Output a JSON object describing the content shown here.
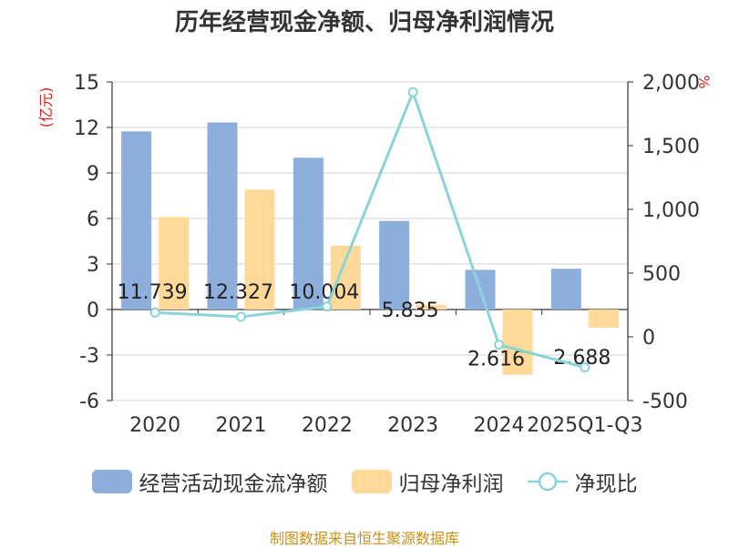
{
  "chart_data": {
    "type": "bar+line",
    "title": "历年经营现金净额、归母净利润情况",
    "categories": [
      "2020",
      "2021",
      "2022",
      "2023",
      "2024",
      "2025Q1-Q3"
    ],
    "series": [
      {
        "name": "经营活动现金流净额",
        "type": "bar",
        "axis": "left",
        "color": "#8eaedb",
        "values": [
          11.739,
          12.327,
          10.004,
          5.835,
          2.616,
          2.688
        ],
        "labels": [
          "11.739",
          "12.327",
          "10.004",
          "5.835",
          "2.616",
          "2.688"
        ]
      },
      {
        "name": "归母净利润",
        "type": "bar",
        "axis": "left",
        "color": "#fed99a",
        "values": [
          6.1,
          7.9,
          4.2,
          0.3,
          -4.3,
          -1.2
        ]
      },
      {
        "name": "净现比",
        "type": "line",
        "axis": "right",
        "color": "#8ad3d9",
        "values": [
          190,
          157,
          238,
          1920,
          -62,
          -240
        ]
      }
    ],
    "y_left": {
      "unit": "(亿元)",
      "min": -6,
      "max": 15,
      "ticks": [
        "-6",
        "-3",
        "0",
        "3",
        "6",
        "9",
        "12",
        "15"
      ]
    },
    "y_right": {
      "unit": "%",
      "min": -500,
      "max": 2000,
      "ticks": [
        "-500",
        "0",
        "500",
        "1,000",
        "1,500",
        "2,000"
      ]
    }
  },
  "source": "制图数据来自恒生聚源数据库"
}
